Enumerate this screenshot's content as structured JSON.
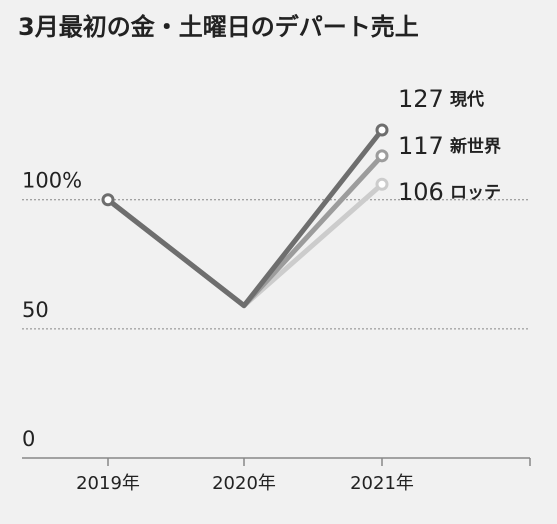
{
  "chart_data": {
    "type": "line",
    "title": "3月最初の金・土曜日のデパート売上",
    "categories": [
      "2019年",
      "2020年",
      "2021年"
    ],
    "series": [
      {
        "name": "現代",
        "color": "#6e6e6e",
        "values": [
          100,
          59,
          127
        ]
      },
      {
        "name": "新世界",
        "color": "#9c9c9c",
        "values": [
          100,
          59,
          117
        ]
      },
      {
        "name": "ロッテ",
        "color": "#cccccc",
        "values": [
          100,
          59,
          106
        ]
      }
    ],
    "ylim": [
      0,
      127
    ],
    "yticks": [
      0,
      50,
      {
        "value": 100,
        "label": "100%"
      }
    ]
  }
}
